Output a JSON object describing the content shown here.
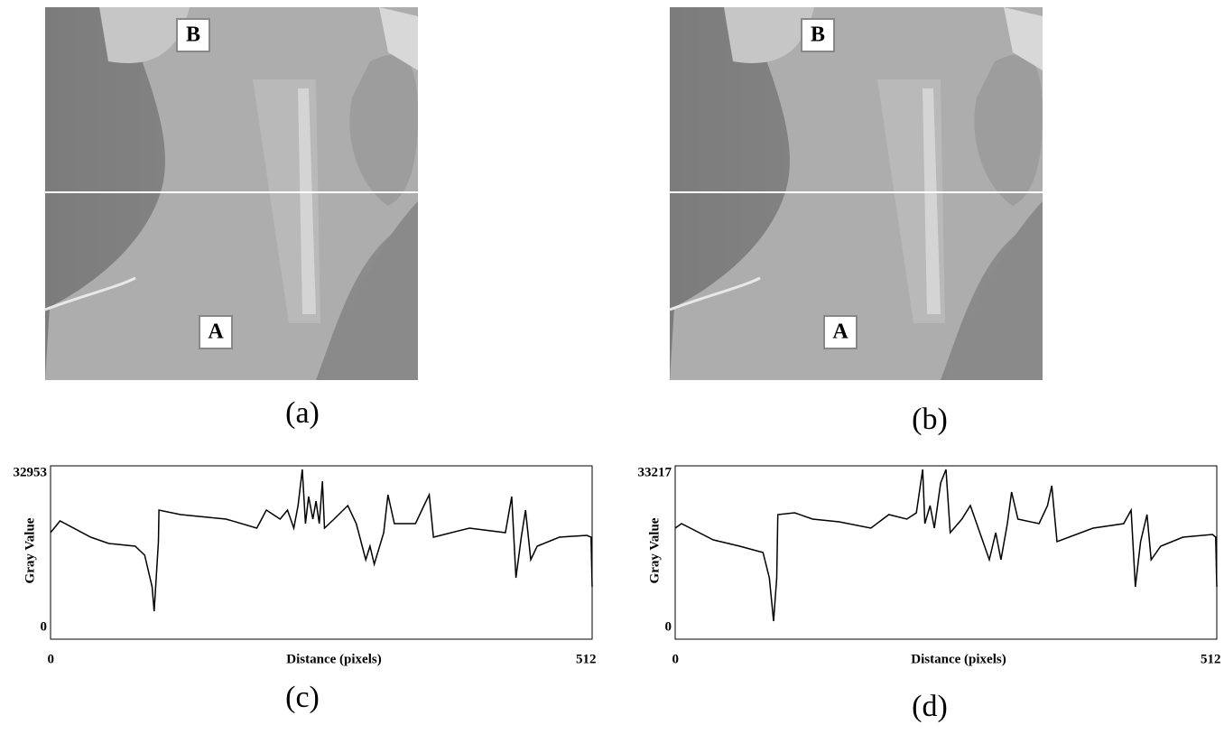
{
  "figures": [
    {
      "label_top": "B",
      "label_bottom": "A",
      "caption": "(a)"
    },
    {
      "label_top": "B",
      "label_bottom": "A",
      "caption": "(b)"
    }
  ],
  "chart_data": [
    {
      "type": "line",
      "caption": "(c)",
      "x_label": "Distance (pixels)",
      "y_label": "Gray Value",
      "xlim": [
        0,
        512
      ],
      "ylim": [
        0,
        32953
      ],
      "xticks": [
        0,
        512
      ],
      "yticks": [
        0,
        32953
      ],
      "color": "#000000",
      "x": [
        0,
        9,
        38,
        55,
        80,
        89,
        96,
        98,
        102,
        102.5,
        123,
        166,
        195,
        204,
        217,
        224,
        230,
        234,
        238,
        241,
        244,
        248,
        251,
        254,
        257,
        259,
        268,
        281,
        289,
        298,
        302,
        306,
        315,
        319,
        325,
        345,
        353,
        358,
        362,
        396,
        430,
        436,
        440,
        445,
        449,
        454,
        460,
        481,
        507,
        511,
        512
      ],
      "values": [
        19923,
        22344,
        18992,
        17689,
        17130,
        15268,
        8751,
        3724,
        18061,
        24578,
        23647,
        22716,
        20854,
        24578,
        22716,
        24578,
        20854,
        25509,
        32953,
        21785,
        27371,
        22716,
        26440,
        21785,
        30537,
        20854,
        22716,
        25509,
        21785,
        14337,
        17130,
        13406,
        19923,
        27744,
        21785,
        21785,
        25509,
        27744,
        18992,
        20854,
        19923,
        27371,
        10613,
        18992,
        24578,
        14337,
        17130,
        18992,
        19365,
        18992,
        8751
      ]
    },
    {
      "type": "line",
      "caption": "(d)",
      "x_label": "Distance (pixels)",
      "y_label": "Gray Value",
      "xlim": [
        0,
        512
      ],
      "ylim": [
        0,
        33217
      ],
      "xticks": [
        0,
        512
      ],
      "yticks": [
        0,
        33217
      ],
      "color": "#000000",
      "x": [
        0,
        6,
        36,
        61,
        83,
        89,
        93,
        96,
        97,
        113,
        130,
        155,
        185,
        202,
        219,
        228,
        234,
        236,
        241,
        245,
        251,
        256,
        260,
        271,
        279,
        288,
        297,
        303,
        308,
        314,
        318,
        324,
        344,
        352,
        356,
        361,
        395,
        424,
        431,
        435,
        440,
        446,
        450,
        459,
        480,
        508,
        511,
        512
      ],
      "values": [
        21022,
        21961,
        18582,
        17268,
        15955,
        10699,
        1689,
        10699,
        23838,
        24213,
        22899,
        22336,
        21022,
        23838,
        22899,
        24213,
        33217,
        21961,
        25715,
        21022,
        30407,
        33217,
        20084,
        22899,
        25715,
        20084,
        14453,
        20084,
        14453,
        21961,
        28530,
        22899,
        21961,
        25715,
        29844,
        18207,
        21022,
        21961,
        24776,
        8822,
        18207,
        23838,
        14453,
        17268,
        19145,
        19708,
        19145,
        8822
      ]
    }
  ]
}
